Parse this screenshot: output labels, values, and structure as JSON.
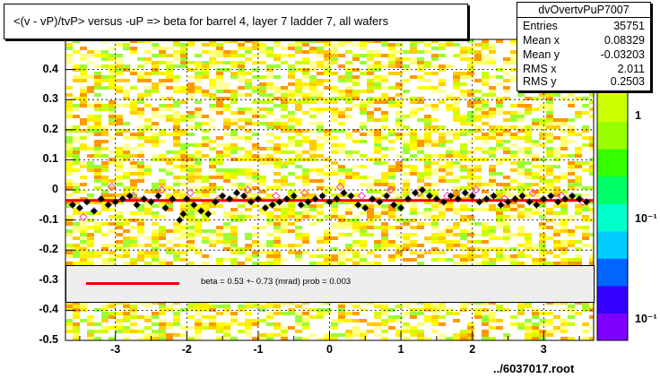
{
  "title": "<(v - vP)/tvP> versus  -uP => beta for barrel 4, layer 7 ladder 7, all wafers",
  "stats": {
    "name": "dvOvertvPuP7007",
    "rows": [
      {
        "label": "Entries",
        "value": "35751"
      },
      {
        "label": "Mean x",
        "value": "0.08329"
      },
      {
        "label": "Mean y",
        "value": "-0.03203"
      },
      {
        "label": "RMS x",
        "value": "2.011"
      },
      {
        "label": "RMS y",
        "value": "0.2503"
      }
    ]
  },
  "fit_legend": "beta =     0.53 +-  0.73 (mrad) prob = 0.003",
  "file_label": "../6037017.root",
  "colors": {
    "fit_line": "#ee0000",
    "profile_points": "#000000",
    "open_points": "#ff33cc",
    "palette": [
      "#7f00ff",
      "#3300ff",
      "#0066ff",
      "#00ccff",
      "#00ffcc",
      "#00ff66",
      "#33ff00",
      "#99ff00",
      "#ccff00",
      "#ffff00",
      "#ffcc00"
    ]
  },
  "chart_data": {
    "type": "heatmap",
    "xlim": [
      -3.7,
      3.7
    ],
    "ylim": [
      -0.5,
      0.5
    ],
    "x_ticks": [
      "-3",
      "-2",
      "-1",
      "0",
      "1",
      "2",
      "3"
    ],
    "y_ticks": [
      "-0.5",
      "-0.4",
      "-0.3",
      "-0.2",
      "-0.1",
      "0",
      "0.1",
      "0.2",
      "0.3",
      "0.4"
    ],
    "z_ticks": [
      "1",
      "10⁻¹",
      "10⁻¹"
    ],
    "profile": {
      "x": [
        -3.6,
        -3.5,
        -3.4,
        -3.3,
        -3.2,
        -3.1,
        -3.0,
        -2.9,
        -2.8,
        -2.7,
        -2.6,
        -2.5,
        -2.4,
        -2.3,
        -2.2,
        -2.1,
        -2.05,
        -2.0,
        -1.9,
        -1.8,
        -1.7,
        -1.6,
        -1.5,
        -1.4,
        -1.3,
        -1.2,
        -1.1,
        -1.0,
        -0.9,
        -0.8,
        -0.7,
        -0.6,
        -0.5,
        -0.4,
        -0.3,
        -0.2,
        -0.1,
        0.0,
        0.1,
        0.2,
        0.3,
        0.4,
        0.5,
        0.6,
        0.7,
        0.8,
        0.9,
        1.0,
        1.1,
        1.2,
        1.3,
        1.4,
        1.5,
        1.6,
        1.7,
        1.8,
        1.9,
        2.0,
        2.1,
        2.2,
        2.3,
        2.4,
        2.5,
        2.6,
        2.7,
        2.8,
        2.9,
        3.0,
        3.1,
        3.2,
        3.3,
        3.4,
        3.5,
        3.6
      ],
      "y": [
        -0.05,
        -0.06,
        -0.04,
        -0.07,
        -0.03,
        -0.05,
        -0.04,
        -0.03,
        -0.02,
        -0.05,
        -0.03,
        -0.04,
        -0.02,
        -0.06,
        -0.03,
        -0.1,
        -0.08,
        -0.03,
        -0.05,
        -0.07,
        -0.08,
        -0.04,
        -0.02,
        -0.03,
        -0.01,
        -0.02,
        -0.04,
        -0.03,
        -0.06,
        -0.05,
        -0.04,
        -0.03,
        -0.02,
        -0.05,
        -0.04,
        -0.03,
        -0.02,
        -0.04,
        -0.03,
        -0.01,
        -0.02,
        -0.05,
        -0.06,
        -0.03,
        -0.04,
        -0.02,
        -0.05,
        -0.06,
        -0.03,
        -0.01,
        0.0,
        -0.02,
        -0.03,
        -0.04,
        -0.02,
        -0.03,
        -0.01,
        -0.02,
        -0.04,
        -0.03,
        -0.02,
        -0.05,
        -0.04,
        -0.03,
        -0.02,
        -0.04,
        -0.05,
        -0.03,
        -0.02,
        -0.04,
        -0.03,
        -0.02,
        -0.03,
        -0.04
      ]
    },
    "open_points": {
      "x": [
        -3.45,
        -3.05,
        -2.75,
        -2.35,
        -1.95,
        -1.55,
        -1.15,
        -0.75,
        -0.35,
        0.15,
        0.45,
        0.85,
        1.25,
        1.65,
        2.05,
        2.45,
        2.85,
        3.25,
        3.55
      ],
      "y": [
        -0.09,
        0.01,
        -0.02,
        0.0,
        -0.01,
        -0.03,
        0.0,
        -0.02,
        -0.01,
        0.01,
        -0.02,
        0.0,
        -0.01,
        -0.02,
        0.0,
        -0.03,
        -0.01,
        -0.02,
        -0.04
      ]
    },
    "fit": {
      "y": -0.035
    }
  }
}
